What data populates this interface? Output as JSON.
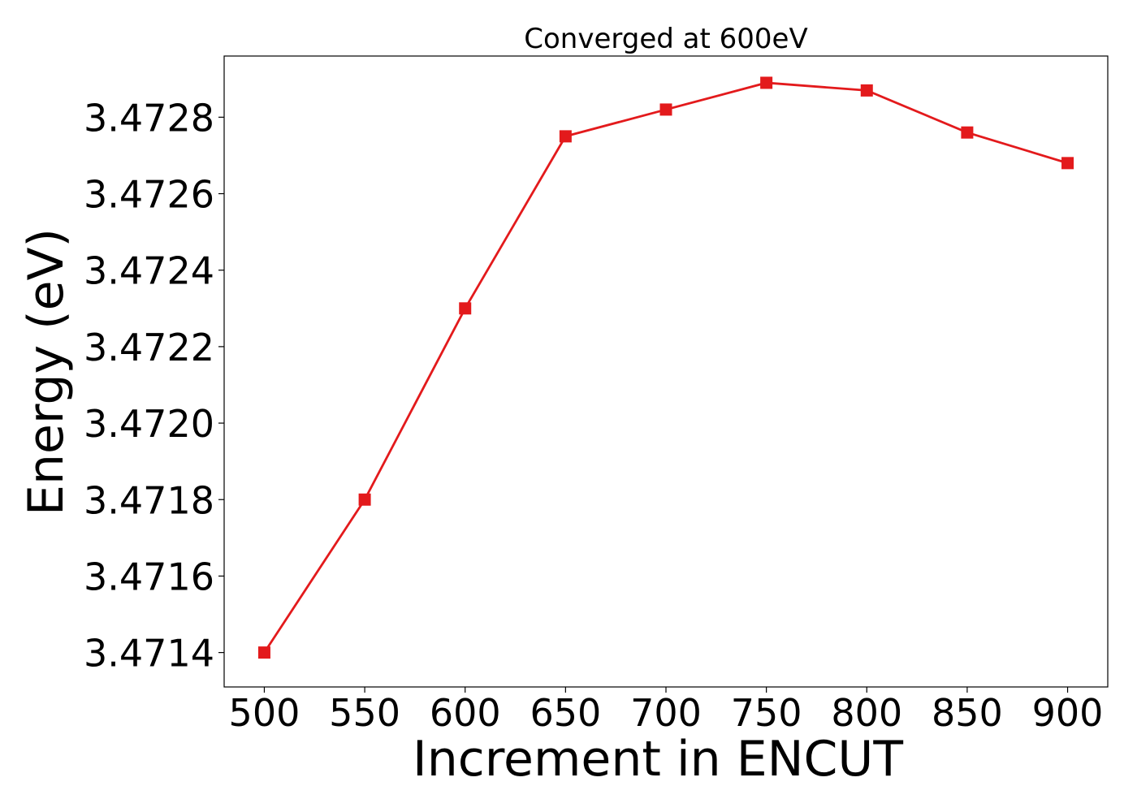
{
  "chart_data": {
    "type": "line",
    "title": "Converged at 600eV",
    "xlabel": "Increment in ENCUT",
    "ylabel": "Energy (eV)",
    "x": [
      500,
      550,
      600,
      650,
      700,
      750,
      800,
      850,
      900
    ],
    "series": [
      {
        "values": [
          3.4714,
          3.4718,
          3.4723,
          3.47275,
          3.47282,
          3.47289,
          3.47287,
          3.47276,
          3.47268
        ],
        "color": "#e31a1c",
        "marker": "square"
      }
    ],
    "xticks": [
      500,
      550,
      600,
      650,
      700,
      750,
      800,
      850,
      900
    ],
    "xtick_labels": [
      "500",
      "550",
      "600",
      "650",
      "700",
      "750",
      "800",
      "850",
      "900"
    ],
    "yticks": [
      3.4714,
      3.4716,
      3.4718,
      3.472,
      3.4722,
      3.4724,
      3.4726,
      3.4728
    ],
    "ytick_labels": [
      "3.4714",
      "3.4716",
      "3.4718",
      "3.4720",
      "3.4722",
      "3.4724",
      "3.4726",
      "3.4728"
    ],
    "xlim": [
      480,
      920
    ],
    "ylim": [
      3.47131,
      3.47296
    ],
    "grid": false,
    "legend": "none"
  }
}
